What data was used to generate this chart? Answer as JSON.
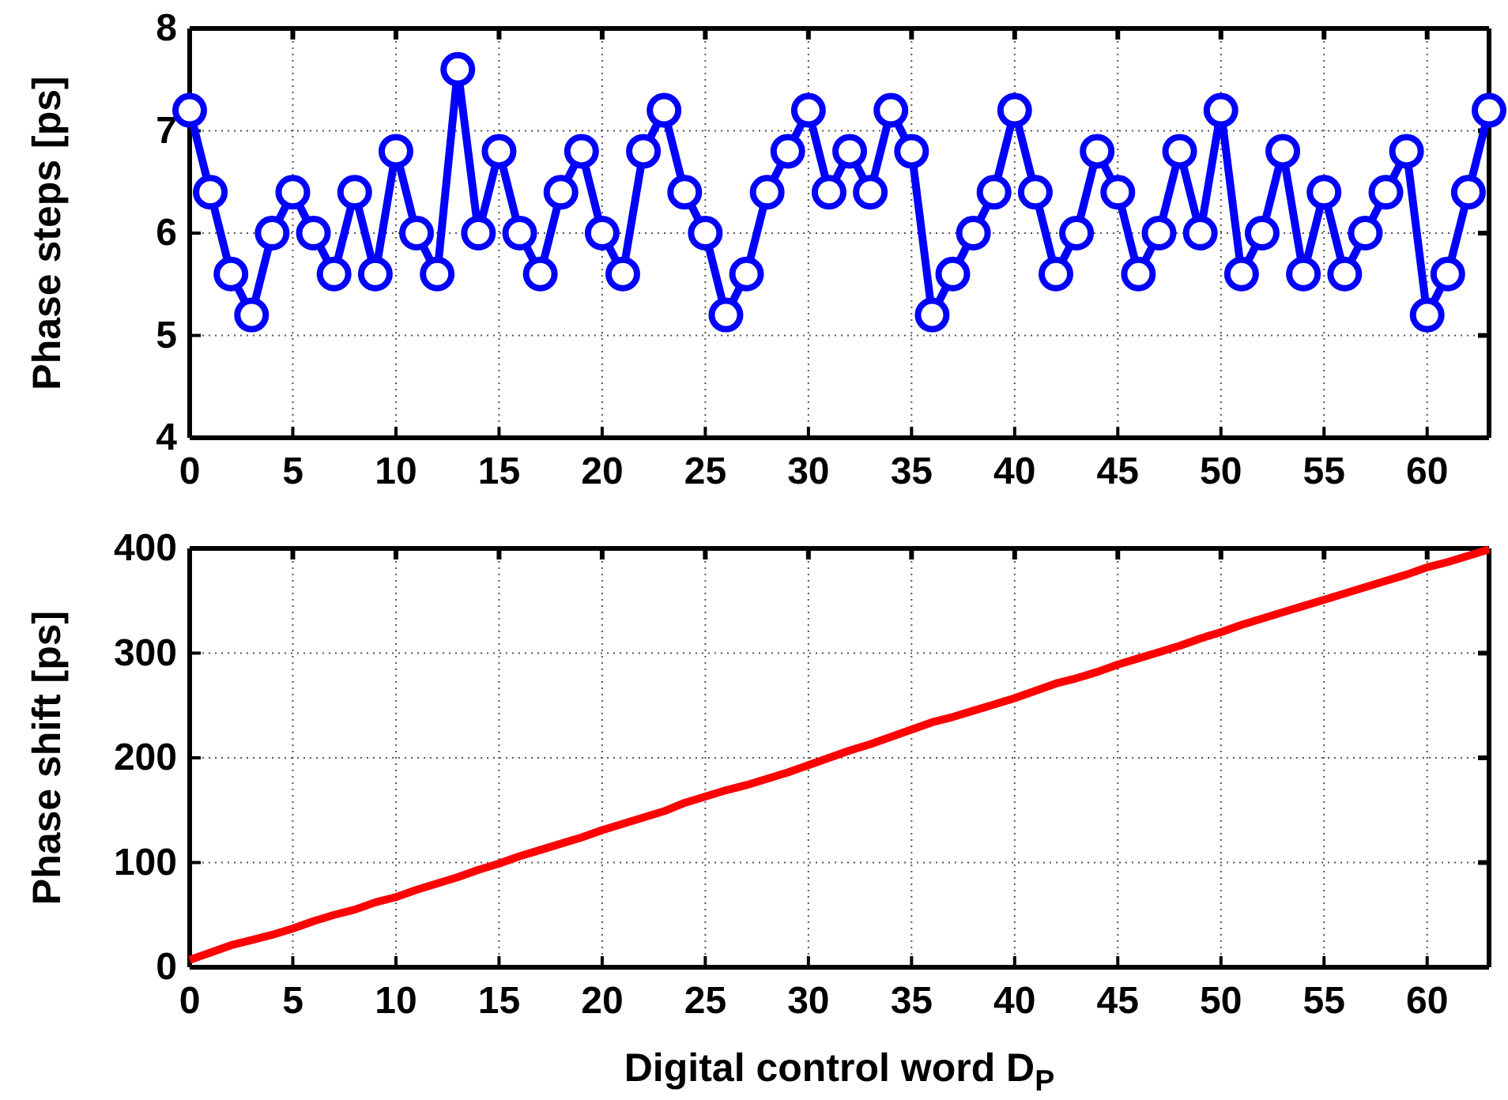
{
  "chart_data": [
    {
      "type": "line",
      "ylabel": "Phase steps [ps]",
      "x": [
        0,
        1,
        2,
        3,
        4,
        5,
        6,
        7,
        8,
        9,
        10,
        11,
        12,
        13,
        14,
        15,
        16,
        17,
        18,
        19,
        20,
        21,
        22,
        23,
        24,
        25,
        26,
        27,
        28,
        29,
        30,
        31,
        32,
        33,
        34,
        35,
        36,
        37,
        38,
        39,
        40,
        41,
        42,
        43,
        44,
        45,
        46,
        47,
        48,
        49,
        50,
        51,
        52,
        53,
        54,
        55,
        56,
        57,
        58,
        59,
        60,
        61,
        62,
        63
      ],
      "series": [
        {
          "color": "#0000ff",
          "values": [
            7.2,
            6.4,
            5.6,
            5.2,
            6.0,
            6.4,
            6.0,
            5.6,
            6.4,
            5.6,
            6.8,
            6.0,
            5.6,
            7.6,
            6.0,
            6.8,
            6.0,
            5.6,
            6.4,
            6.8,
            6.0,
            5.6,
            6.8,
            7.2,
            6.4,
            6.0,
            5.2,
            5.6,
            6.4,
            6.8,
            7.2,
            6.4,
            6.8,
            6.4,
            7.2,
            6.8,
            5.2,
            5.6,
            6.0,
            6.4,
            7.2,
            6.4,
            5.6,
            6.0,
            6.8,
            6.4,
            5.6,
            6.0,
            6.8,
            6.0,
            7.2,
            5.6,
            6.0,
            6.8,
            5.6,
            6.4,
            5.6,
            6.0,
            6.4,
            6.8,
            5.2,
            5.6,
            6.4,
            7.2
          ]
        }
      ],
      "xlim": [
        0,
        63
      ],
      "xticks": [
        0,
        5,
        10,
        15,
        20,
        25,
        30,
        35,
        40,
        45,
        50,
        55,
        60
      ],
      "ylim": [
        4,
        8
      ],
      "yticks": [
        4,
        5,
        6,
        7,
        8
      ],
      "grid": true,
      "marker": "circle",
      "line_style": "solid"
    },
    {
      "type": "line",
      "xlabel": "Digital control word D$_{P}$",
      "ylabel": "Phase shift [ps]",
      "x": [
        0,
        1,
        2,
        3,
        4,
        5,
        6,
        7,
        8,
        9,
        10,
        11,
        12,
        13,
        14,
        15,
        16,
        17,
        18,
        19,
        20,
        21,
        22,
        23,
        24,
        25,
        26,
        27,
        28,
        29,
        30,
        31,
        32,
        33,
        34,
        35,
        36,
        37,
        38,
        39,
        40,
        41,
        42,
        43,
        44,
        45,
        46,
        47,
        48,
        49,
        50,
        51,
        52,
        53,
        54,
        55,
        56,
        57,
        58,
        59,
        60,
        61,
        62,
        63
      ],
      "series": [
        {
          "color": "#ff0000",
          "values": [
            7,
            14,
            21,
            26,
            31,
            37,
            44,
            50,
            55,
            62,
            67,
            74,
            80,
            86,
            93,
            99,
            106,
            112,
            118,
            124,
            131,
            137,
            143,
            149,
            157,
            163,
            169,
            174,
            180,
            186,
            193,
            200,
            207,
            213,
            220,
            227,
            234,
            239,
            245,
            251,
            257,
            264,
            271,
            276,
            282,
            289,
            295,
            301,
            307,
            314,
            320,
            327,
            333,
            339,
            345,
            351,
            357,
            363,
            369,
            375,
            382,
            387,
            393,
            399
          ]
        }
      ],
      "xlim": [
        0,
        63
      ],
      "xticks": [
        0,
        5,
        10,
        15,
        20,
        25,
        30,
        35,
        40,
        45,
        50,
        55,
        60
      ],
      "ylim": [
        0,
        400
      ],
      "yticks": [
        0,
        100,
        200,
        300,
        400
      ],
      "grid": true,
      "marker": "none",
      "line_style": "solid"
    }
  ]
}
